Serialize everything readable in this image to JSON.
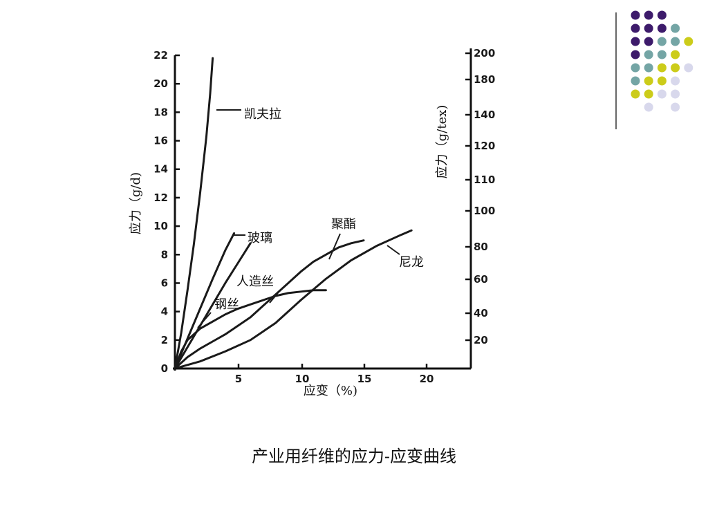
{
  "caption": "产业用纤维的应力-应变曲线",
  "decor": {
    "colors": [
      "#3d1b6b",
      "#74a5a5",
      "#cccc1a",
      "#d8d8ec"
    ],
    "line_color": "#333333"
  },
  "chart_data": {
    "type": "line",
    "title": "",
    "xlabel": "应变（%)",
    "ylabel_left": "应力（g/d)",
    "ylabel_right": "应力（g/tex)",
    "xlim": [
      0,
      23
    ],
    "ylim": [
      0,
      22
    ],
    "x_ticks": [
      "5",
      "10",
      "15",
      "20"
    ],
    "y_ticks_left": [
      "0",
      "2",
      "4",
      "6",
      "8",
      "10",
      "12",
      "14",
      "16",
      "18",
      "20",
      "22"
    ],
    "y_ticks_right": [
      "20",
      "40",
      "60",
      "80",
      "100",
      "110",
      "120",
      "140",
      "180",
      "200"
    ],
    "series": [
      {
        "name": "凯夫拉",
        "x": [
          0,
          0.5,
          1.0,
          1.5,
          2.0,
          2.5,
          2.8,
          3.0
        ],
        "y": [
          0,
          2.5,
          5.5,
          8.7,
          12.3,
          16.3,
          19.3,
          21.8
        ]
      },
      {
        "name": "玻璃",
        "x": [
          0,
          1,
          2,
          3,
          4,
          4.7
        ],
        "y": [
          0,
          2.1,
          4.2,
          6.3,
          8.3,
          9.5
        ]
      },
      {
        "name": "钢丝",
        "x": [
          0,
          1,
          2,
          3,
          4,
          5,
          6
        ],
        "y": [
          0,
          1.5,
          3.0,
          4.5,
          6.0,
          7.4,
          8.8
        ]
      },
      {
        "name": "人造丝",
        "x": [
          0,
          0.5,
          1,
          2,
          3,
          4,
          5,
          6,
          7,
          8,
          9,
          10,
          11,
          12
        ],
        "y": [
          0,
          1.2,
          2.0,
          2.8,
          3.3,
          3.8,
          4.2,
          4.5,
          4.8,
          5.1,
          5.3,
          5.4,
          5.5,
          5.5
        ]
      },
      {
        "name": "聚酯",
        "x": [
          0,
          1,
          2,
          3,
          4,
          5,
          6,
          7,
          8,
          9,
          10,
          11,
          12,
          13,
          14,
          15
        ],
        "y": [
          0,
          0.8,
          1.4,
          1.9,
          2.4,
          3.0,
          3.6,
          4.4,
          5.2,
          6.0,
          6.8,
          7.5,
          8.0,
          8.5,
          8.8,
          9.0
        ]
      },
      {
        "name": "尼龙",
        "x": [
          0,
          2,
          4,
          6,
          8,
          10,
          12,
          14,
          16,
          18,
          18.8
        ],
        "y": [
          0,
          0.5,
          1.2,
          2.0,
          3.2,
          4.8,
          6.3,
          7.6,
          8.6,
          9.4,
          9.7
        ]
      }
    ]
  }
}
